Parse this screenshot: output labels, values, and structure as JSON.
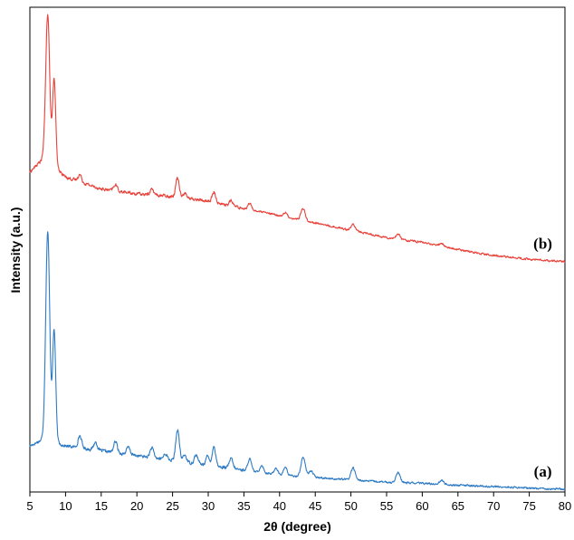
{
  "chart_data": {
    "type": "line",
    "title": "",
    "xlabel": "2θ (degree)",
    "ylabel": "Intensity (a.u.)",
    "xlim": [
      5,
      80
    ],
    "ylim": [
      0,
      100
    ],
    "xticks": [
      5,
      10,
      15,
      20,
      25,
      30,
      35,
      40,
      45,
      50,
      55,
      60,
      65,
      70,
      75,
      80
    ],
    "yticks_shown": false,
    "grid": false,
    "legend": "none",
    "series": [
      {
        "name": "(a)",
        "color": "#2e7bc4",
        "baseline": [
          [
            5,
            9.5
          ],
          [
            7,
            11
          ],
          [
            10,
            9.5
          ],
          [
            15,
            8.5
          ],
          [
            20,
            7.5
          ],
          [
            25,
            6.5
          ],
          [
            30,
            5.5
          ],
          [
            35,
            4.5
          ],
          [
            40,
            3.5
          ],
          [
            45,
            3
          ],
          [
            50,
            2.5
          ],
          [
            55,
            2
          ],
          [
            60,
            1.8
          ],
          [
            65,
            1.4
          ],
          [
            70,
            1.1
          ],
          [
            75,
            0.8
          ],
          [
            80,
            0.6
          ]
        ],
        "peaks": [
          {
            "x": 7.5,
            "height": 43,
            "width": 0.28
          },
          {
            "x": 8.4,
            "height": 23,
            "width": 0.22
          },
          {
            "x": 12.0,
            "height": 2.5,
            "width": 0.25
          },
          {
            "x": 14.2,
            "height": 1.6,
            "width": 0.25
          },
          {
            "x": 17.0,
            "height": 2.3,
            "width": 0.25
          },
          {
            "x": 18.8,
            "height": 1.5,
            "width": 0.25
          },
          {
            "x": 22.1,
            "height": 2.0,
            "width": 0.25
          },
          {
            "x": 24.0,
            "height": 1.2,
            "width": 0.25
          },
          {
            "x": 25.7,
            "height": 6.5,
            "width": 0.25
          },
          {
            "x": 26.7,
            "height": 1.5,
            "width": 0.25
          },
          {
            "x": 28.3,
            "height": 1.8,
            "width": 0.25
          },
          {
            "x": 29.9,
            "height": 1.8,
            "width": 0.25
          },
          {
            "x": 30.8,
            "height": 4.0,
            "width": 0.25
          },
          {
            "x": 33.2,
            "height": 2.0,
            "width": 0.25
          },
          {
            "x": 35.8,
            "height": 2.5,
            "width": 0.25
          },
          {
            "x": 37.5,
            "height": 1.5,
            "width": 0.25
          },
          {
            "x": 39.5,
            "height": 1.4,
            "width": 0.25
          },
          {
            "x": 40.8,
            "height": 1.7,
            "width": 0.25
          },
          {
            "x": 43.3,
            "height": 4.0,
            "width": 0.3
          },
          {
            "x": 44.4,
            "height": 1.3,
            "width": 0.3
          },
          {
            "x": 50.3,
            "height": 2.5,
            "width": 0.3
          },
          {
            "x": 56.6,
            "height": 2.0,
            "width": 0.3
          },
          {
            "x": 62.7,
            "height": 0.8,
            "width": 0.3
          }
        ]
      },
      {
        "name": "(b)",
        "color": "#e8413a",
        "baseline": [
          [
            5,
            66
          ],
          [
            7,
            69
          ],
          [
            10,
            65
          ],
          [
            15,
            62.5
          ],
          [
            20,
            61.5
          ],
          [
            25,
            61
          ],
          [
            30,
            60
          ],
          [
            35,
            58.5
          ],
          [
            40,
            57
          ],
          [
            45,
            55.5
          ],
          [
            50,
            54
          ],
          [
            55,
            52.5
          ],
          [
            60,
            51.5
          ],
          [
            65,
            50
          ],
          [
            70,
            48.8
          ],
          [
            75,
            48
          ],
          [
            80,
            47.5
          ]
        ],
        "peaks": [
          {
            "x": 7.5,
            "height": 30,
            "width": 0.28
          },
          {
            "x": 8.4,
            "height": 18,
            "width": 0.22
          },
          {
            "x": 12.0,
            "height": 1.5,
            "width": 0.25
          },
          {
            "x": 17.0,
            "height": 1.3,
            "width": 0.25
          },
          {
            "x": 22.1,
            "height": 1.2,
            "width": 0.25
          },
          {
            "x": 25.7,
            "height": 4.0,
            "width": 0.25
          },
          {
            "x": 26.7,
            "height": 1.0,
            "width": 0.25
          },
          {
            "x": 30.8,
            "height": 2.0,
            "width": 0.25
          },
          {
            "x": 33.2,
            "height": 1.0,
            "width": 0.25
          },
          {
            "x": 35.8,
            "height": 1.3,
            "width": 0.25
          },
          {
            "x": 40.8,
            "height": 0.9,
            "width": 0.25
          },
          {
            "x": 43.3,
            "height": 2.5,
            "width": 0.3
          },
          {
            "x": 50.3,
            "height": 1.3,
            "width": 0.3
          },
          {
            "x": 56.6,
            "height": 1.0,
            "width": 0.3
          },
          {
            "x": 62.7,
            "height": 0.6,
            "width": 0.3
          }
        ]
      }
    ]
  }
}
